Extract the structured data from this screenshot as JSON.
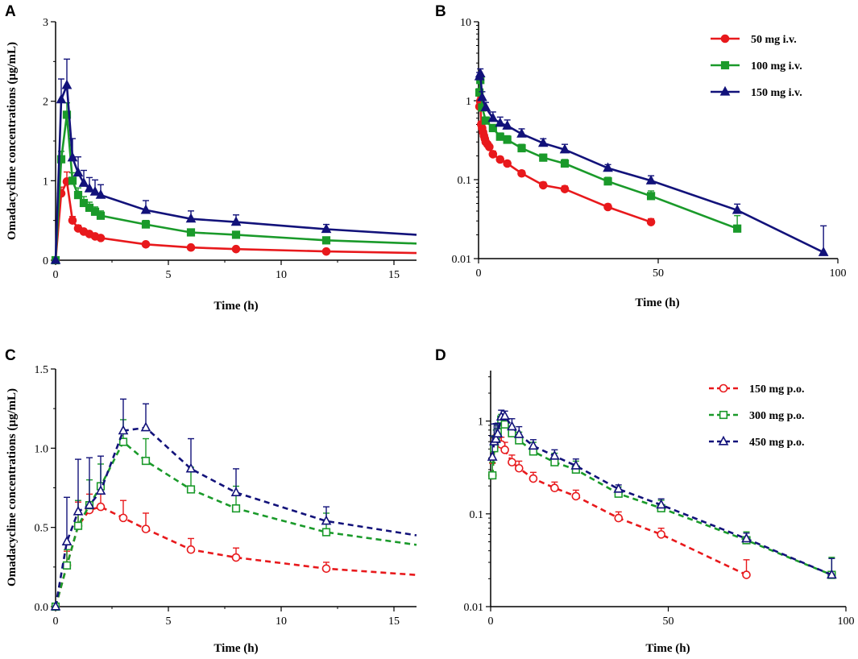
{
  "figure": {
    "colors": {
      "red": "#e8191c",
      "green": "#1a9a2a",
      "blue": "#12127a",
      "axis": "#000000"
    }
  },
  "chart_data": [
    {
      "panel": "A",
      "type": "line",
      "scale": "linear",
      "line_style": "solid",
      "marker_fill": "filled",
      "xlabel": "Time (h)",
      "ylabel": "Omadacycline concentrations (μg/mL)",
      "xlim": [
        0,
        16
      ],
      "ylim": [
        0,
        3
      ],
      "xticks": [
        0,
        5,
        10,
        15
      ],
      "xtick_labels": [
        "0",
        "5",
        "10",
        "15"
      ],
      "yticks": [
        0,
        1,
        2,
        3
      ],
      "ytick_labels": [
        "0",
        "1",
        "2",
        "3"
      ],
      "legend": false,
      "series": [
        {
          "name": "50 mg i.v.",
          "color": "#e8191c",
          "marker": "circle",
          "x": [
            0,
            0.25,
            0.5,
            0.75,
            1,
            1.25,
            1.5,
            1.75,
            2,
            4,
            6,
            8,
            12
          ],
          "y": [
            0,
            0.84,
            0.99,
            0.5,
            0.4,
            0.36,
            0.33,
            0.3,
            0.28,
            0.2,
            0.16,
            0.14,
            0.11
          ],
          "err": [
            0,
            0.08,
            0.12,
            0.05,
            0.04,
            0.03,
            0.03,
            0.03,
            0.02,
            0.02,
            0.02,
            0.015,
            0.01
          ],
          "tail_x": 16,
          "tail_y": 0.09
        },
        {
          "name": "100 mg i.v.",
          "color": "#1a9a2a",
          "marker": "square",
          "x": [
            0,
            0.25,
            0.5,
            0.75,
            1,
            1.25,
            1.5,
            1.75,
            2,
            4,
            6,
            8,
            12
          ],
          "y": [
            0,
            1.27,
            1.83,
            1.0,
            0.82,
            0.72,
            0.66,
            0.61,
            0.56,
            0.45,
            0.35,
            0.32,
            0.25
          ],
          "err": [
            0,
            0.1,
            0.15,
            0.1,
            0.09,
            0.08,
            0.07,
            0.06,
            0.06,
            0.05,
            0.04,
            0.04,
            0.03
          ],
          "tail_x": 16,
          "tail_y": 0.21
        },
        {
          "name": "150 mg i.v.",
          "color": "#12127a",
          "marker": "triangle",
          "x": [
            0,
            0.25,
            0.5,
            0.75,
            1,
            1.25,
            1.5,
            1.75,
            2,
            4,
            6,
            8,
            12
          ],
          "y": [
            0,
            2.02,
            2.2,
            1.29,
            1.1,
            0.97,
            0.9,
            0.86,
            0.82,
            0.63,
            0.52,
            0.48,
            0.39
          ],
          "err": [
            0,
            0.26,
            0.33,
            0.24,
            0.2,
            0.16,
            0.14,
            0.15,
            0.13,
            0.12,
            0.1,
            0.09,
            0.06
          ],
          "tail_x": 16,
          "tail_y": 0.32
        }
      ]
    },
    {
      "panel": "B",
      "type": "line",
      "scale": "log",
      "line_style": "solid",
      "marker_fill": "filled",
      "xlabel": "Time (h)",
      "ylabel": "",
      "xlim": [
        0,
        100
      ],
      "ylim": [
        0.01,
        10
      ],
      "xticks": [
        0,
        50,
        100
      ],
      "xtick_labels": [
        "0",
        "50",
        "100"
      ],
      "yticks": [
        0.01,
        0.1,
        1,
        10
      ],
      "ytick_labels": [
        "0.01",
        "0.1",
        "1",
        "10"
      ],
      "legend": true,
      "legend_position": "top-right",
      "series": [
        {
          "name": "50 mg i.v.",
          "color": "#e8191c",
          "marker": "circle",
          "x": [
            0.25,
            0.5,
            0.75,
            1,
            1.25,
            1.5,
            1.75,
            2,
            2.5,
            3,
            4,
            6,
            8,
            12,
            18,
            24,
            36,
            48
          ],
          "y": [
            0.84,
            0.99,
            0.5,
            0.45,
            0.4,
            0.36,
            0.33,
            0.3,
            0.28,
            0.26,
            0.21,
            0.18,
            0.16,
            0.12,
            0.085,
            0.076,
            0.045,
            0.029
          ],
          "err": [
            0.1,
            0.12,
            0.05,
            0.04,
            0.04,
            0.03,
            0.03,
            0.03,
            0.02,
            0.02,
            0.02,
            0.015,
            0.012,
            0.01,
            0.008,
            0.007,
            0.004,
            0.003
          ]
        },
        {
          "name": "100 mg i.v.",
          "color": "#1a9a2a",
          "marker": "square",
          "x": [
            0.25,
            0.5,
            1,
            2,
            4,
            6,
            8,
            12,
            18,
            24,
            36,
            48,
            72
          ],
          "y": [
            1.27,
            1.83,
            0.82,
            0.56,
            0.45,
            0.35,
            0.32,
            0.25,
            0.19,
            0.16,
            0.095,
            0.062,
            0.024
          ],
          "err": [
            0.15,
            0.2,
            0.09,
            0.06,
            0.05,
            0.04,
            0.04,
            0.03,
            0.02,
            0.02,
            0.012,
            0.01,
            0.011
          ]
        },
        {
          "name": "150 mg i.v.",
          "color": "#12127a",
          "marker": "triangle",
          "x": [
            0.25,
            0.5,
            1,
            2,
            4,
            6,
            8,
            12,
            18,
            24,
            36,
            48,
            72,
            96
          ],
          "y": [
            2.02,
            2.2,
            1.1,
            0.82,
            0.6,
            0.52,
            0.48,
            0.38,
            0.29,
            0.24,
            0.14,
            0.097,
            0.041,
            0.012
          ],
          "err": [
            0.26,
            0.33,
            0.2,
            0.13,
            0.12,
            0.1,
            0.09,
            0.06,
            0.04,
            0.04,
            0.015,
            0.015,
            0.008,
            0.014
          ]
        }
      ]
    },
    {
      "panel": "C",
      "type": "line",
      "scale": "linear",
      "line_style": "dashed",
      "marker_fill": "open",
      "xlabel": "Time (h)",
      "ylabel": "Omadacycline concentrations (μg/mL)",
      "xlim": [
        0,
        16
      ],
      "ylim": [
        0,
        1.5
      ],
      "xticks": [
        0,
        5,
        10,
        15
      ],
      "xtick_labels": [
        "0",
        "5",
        "10",
        "15"
      ],
      "yticks": [
        0,
        0.5,
        1.0,
        1.5
      ],
      "ytick_labels": [
        "0.0",
        "0.5",
        "1.0",
        "1.5"
      ],
      "legend": false,
      "series": [
        {
          "name": "150 mg p.o.",
          "color": "#e8191c",
          "marker": "circle",
          "x": [
            0,
            0.5,
            1,
            1.5,
            2,
            3,
            4,
            6,
            8,
            12
          ],
          "y": [
            0,
            0.26,
            0.51,
            0.61,
            0.63,
            0.56,
            0.49,
            0.36,
            0.31,
            0.24
          ],
          "err": [
            0,
            0.09,
            0.15,
            0.1,
            0.09,
            0.11,
            0.1,
            0.07,
            0.06,
            0.04
          ],
          "tail_x": 16,
          "tail_y": 0.2
        },
        {
          "name": "300 mg p.o.",
          "color": "#1a9a2a",
          "marker": "square",
          "x": [
            0,
            0.5,
            1,
            1.5,
            2,
            3,
            4,
            6,
            8,
            12
          ],
          "y": [
            0,
            0.26,
            0.51,
            0.64,
            0.76,
            1.04,
            0.92,
            0.74,
            0.62,
            0.47
          ],
          "err": [
            0,
            0.1,
            0.16,
            0.16,
            0.14,
            0.14,
            0.14,
            0.14,
            0.14,
            0.12
          ],
          "tail_x": 16,
          "tail_y": 0.39
        },
        {
          "name": "450 mg p.o.",
          "color": "#12127a",
          "marker": "triangle",
          "x": [
            0,
            0.5,
            1,
            1.5,
            2,
            3,
            4,
            6,
            8,
            12
          ],
          "y": [
            0,
            0.41,
            0.6,
            0.64,
            0.73,
            1.11,
            1.13,
            0.87,
            0.72,
            0.54
          ],
          "err": [
            0,
            0.28,
            0.33,
            0.3,
            0.22,
            0.2,
            0.15,
            0.19,
            0.15,
            0.09
          ],
          "tail_x": 16,
          "tail_y": 0.45
        }
      ]
    },
    {
      "panel": "D",
      "type": "line",
      "scale": "log",
      "line_style": "dashed",
      "marker_fill": "open",
      "xlabel": "Time (h)",
      "ylabel": "",
      "xlim": [
        0,
        100
      ],
      "ylim": [
        0.01,
        3.5
      ],
      "xticks": [
        0,
        50,
        100
      ],
      "xtick_labels": [
        "0",
        "50",
        "100"
      ],
      "yticks": [
        0.01,
        0.1,
        1
      ],
      "ytick_labels": [
        "0.01",
        "0.1",
        "1"
      ],
      "legend": true,
      "legend_position": "top-right",
      "series": [
        {
          "name": "150 mg p.o.",
          "color": "#e8191c",
          "marker": "circle",
          "x": [
            0.5,
            1,
            1.5,
            2,
            3,
            4,
            6,
            8,
            12,
            18,
            24,
            36,
            48,
            72
          ],
          "y": [
            0.26,
            0.51,
            0.61,
            0.63,
            0.56,
            0.49,
            0.36,
            0.31,
            0.24,
            0.19,
            0.155,
            0.09,
            0.06,
            0.022
          ],
          "err": [
            0.09,
            0.15,
            0.1,
            0.09,
            0.11,
            0.1,
            0.07,
            0.06,
            0.04,
            0.03,
            0.025,
            0.015,
            0.01,
            0.01
          ]
        },
        {
          "name": "300 mg p.o.",
          "color": "#1a9a2a",
          "marker": "square",
          "x": [
            0.5,
            1,
            1.5,
            2,
            3,
            4,
            6,
            8,
            12,
            18,
            24,
            36,
            48,
            72,
            96
          ],
          "y": [
            0.26,
            0.51,
            0.64,
            0.76,
            1.04,
            0.92,
            0.74,
            0.62,
            0.47,
            0.36,
            0.3,
            0.165,
            0.115,
            0.052,
            0.022
          ],
          "err": [
            0.1,
            0.16,
            0.16,
            0.14,
            0.14,
            0.14,
            0.14,
            0.14,
            0.12,
            0.09,
            0.07,
            0.03,
            0.025,
            0.012,
            0.012
          ]
        },
        {
          "name": "450 mg p.o.",
          "color": "#12127a",
          "marker": "triangle",
          "x": [
            0.5,
            1,
            1.5,
            2,
            3,
            4,
            6,
            8,
            12,
            18,
            24,
            36,
            48,
            72,
            96
          ],
          "y": [
            0.41,
            0.6,
            0.64,
            0.73,
            1.11,
            1.13,
            0.87,
            0.72,
            0.54,
            0.42,
            0.33,
            0.185,
            0.125,
            0.054,
            0.022
          ],
          "err": [
            0.28,
            0.33,
            0.3,
            0.22,
            0.2,
            0.15,
            0.19,
            0.15,
            0.09,
            0.07,
            0.06,
            0.02,
            0.02,
            0.008,
            0.011
          ]
        }
      ]
    }
  ]
}
